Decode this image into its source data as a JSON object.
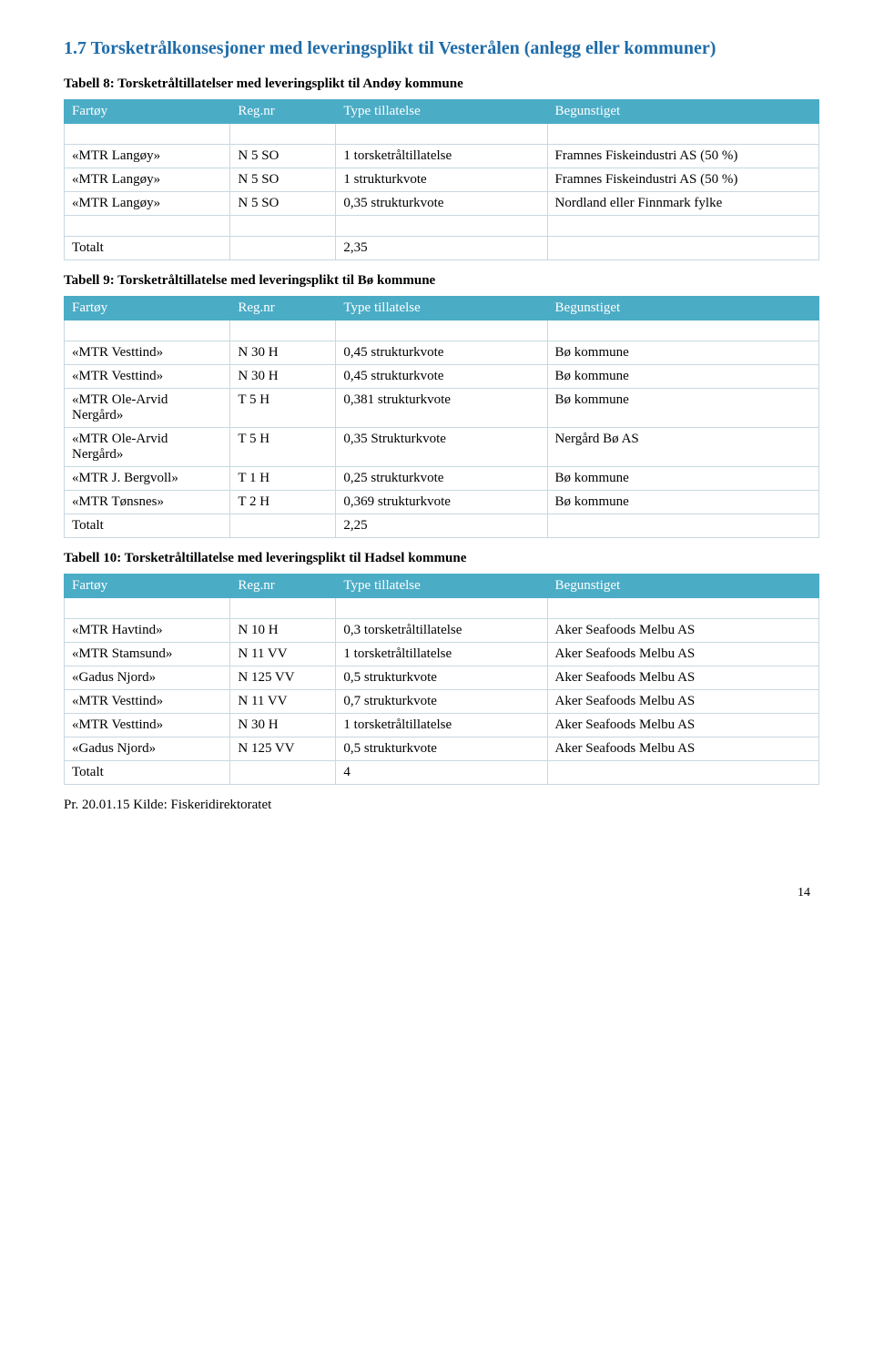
{
  "section": {
    "number": "1.7",
    "title": "Torsketrålkonsesjoner med leveringsplikt til Vesterålen (anlegg eller kommuner)"
  },
  "table8": {
    "caption": "Tabell 8: Torsketråltillatelser med leveringsplikt til Andøy kommune",
    "headers": [
      "Fartøy",
      "Reg.nr",
      "Type tillatelse",
      "Begunstiget"
    ],
    "rows": [
      [
        "«MTR Langøy»",
        "N 5 SO",
        "1 torsketråltillatelse",
        "Framnes Fiskeindustri AS (50 %)"
      ],
      [
        "«MTR Langøy»",
        "N 5 SO",
        "1 strukturkvote",
        "Framnes Fiskeindustri AS (50 %)"
      ],
      [
        "«MTR Langøy»",
        "N 5 SO",
        "0,35 strukturkvote",
        "Nordland eller Finnmark fylke"
      ]
    ],
    "total": [
      "Totalt",
      "",
      "2,35",
      ""
    ]
  },
  "table9": {
    "caption": "Tabell 9: Torsketråltillatelse med leveringsplikt til Bø kommune",
    "headers": [
      "Fartøy",
      "Reg.nr",
      "Type tillatelse",
      "Begunstiget"
    ],
    "rows": [
      [
        "«MTR Vesttind»",
        "N 30 H",
        "0,45 strukturkvote",
        "Bø kommune"
      ],
      [
        "«MTR Vesttind»",
        "N 30 H",
        "0,45 strukturkvote",
        "Bø kommune"
      ],
      [
        "«MTR Ole-Arvid Nergård»",
        "T 5 H",
        "0,381 strukturkvote",
        "Bø kommune"
      ],
      [
        "«MTR Ole-Arvid Nergård»",
        "T 5 H",
        "0,35 Strukturkvote",
        "Nergård Bø AS"
      ],
      [
        "«MTR J. Bergvoll»",
        "T 1 H",
        "0,25 strukturkvote",
        "Bø kommune"
      ],
      [
        "«MTR Tønsnes»",
        "T 2 H",
        "0,369 strukturkvote",
        "Bø kommune"
      ]
    ],
    "total": [
      "Totalt",
      "",
      "2,25",
      ""
    ]
  },
  "table10": {
    "caption": "Tabell 10: Torsketråltillatelse med leveringsplikt til Hadsel kommune",
    "headers": [
      "Fartøy",
      "Reg.nr",
      "Type tillatelse",
      "Begunstiget"
    ],
    "rows": [
      [
        "«MTR Havtind»",
        "N 10 H",
        "0,3 torsketråltillatelse",
        "Aker Seafoods Melbu AS"
      ],
      [
        "«MTR Stamsund»",
        "N 11 VV",
        "1 torsketråltillatelse",
        "Aker Seafoods Melbu AS"
      ],
      [
        "«Gadus Njord»",
        "N 125 VV",
        "0,5 strukturkvote",
        "Aker Seafoods Melbu AS"
      ],
      [
        "«MTR Vesttind»",
        "N 11 VV",
        "0,7 strukturkvote",
        "Aker Seafoods Melbu AS"
      ],
      [
        "«MTR Vesttind»",
        "N 30 H",
        "1 torsketråltillatelse",
        "Aker Seafoods Melbu AS"
      ],
      [
        "«Gadus Njord»",
        "N 125 VV",
        "0,5 strukturkvote",
        "Aker Seafoods Melbu AS"
      ]
    ],
    "total": [
      "Totalt",
      "",
      "4",
      ""
    ]
  },
  "source": "Pr. 20.01.15 Kilde: Fiskeridirektoratet",
  "page_number": "14",
  "colors": {
    "header_bg": "#4bacc6",
    "header_fg": "#ffffff",
    "cell_border": "#c7d9e0",
    "title_color": "#1f6ca8"
  }
}
